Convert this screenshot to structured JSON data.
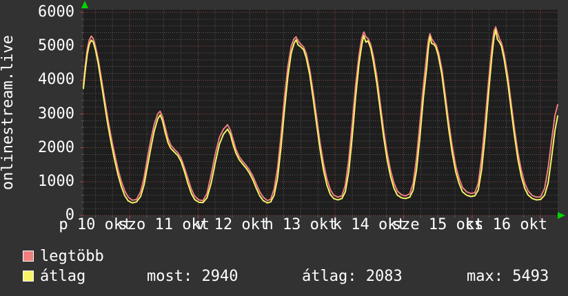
{
  "window": {
    "background": "#323232",
    "plot_background": "#1e1e1e"
  },
  "colors": {
    "text": "#ffffff",
    "major_grid": "#a04747",
    "minor_grid": "#5a5a5a",
    "axis_arrow": "#00d400",
    "max_line": "#f08080",
    "avg_line": "#f5f466"
  },
  "legend": {
    "items": [
      {
        "label": "legtöbb",
        "color": "#f08080"
      },
      {
        "label": "átlag",
        "color": "#f5f466"
      }
    ]
  },
  "stats": [
    {
      "label": "most",
      "value": 2940,
      "display": "most: 2940"
    },
    {
      "label": "átlag",
      "value": 2083,
      "display": "átlag: 2083"
    },
    {
      "label": "max",
      "value": 5493,
      "display": "max: 5493"
    }
  ],
  "chart_data": {
    "type": "line",
    "title": "onlinestream.live",
    "xlabel": "",
    "ylabel": "",
    "ylim": [
      0,
      6000
    ],
    "yticks": [
      0,
      1000,
      2000,
      3000,
      4000,
      5000,
      6000
    ],
    "y_minor_step": 200,
    "grid": true,
    "legend_position": "bottom-left",
    "x_range_days": [
      0.325,
      7.25
    ],
    "x_major_gridlines_days": [
      1,
      2,
      3,
      4,
      5,
      6,
      7
    ],
    "x_minor_step_days": 0.25,
    "x_labels": [
      {
        "center_day": 0.5,
        "text": "p 10 okt"
      },
      {
        "center_day": 1.5,
        "text": "szo 11 okt"
      },
      {
        "center_day": 2.5,
        "text": "v 12 okt"
      },
      {
        "center_day": 3.5,
        "text": "h 13 okt"
      },
      {
        "center_day": 4.5,
        "text": "k 14 okt"
      },
      {
        "center_day": 5.5,
        "text": "sze 15 okt"
      },
      {
        "center_day": 6.5,
        "text": "cs 16 okt"
      }
    ],
    "t_days": [
      0.325,
      0.35,
      0.38,
      0.41,
      0.44,
      0.47,
      0.5,
      0.54,
      0.58,
      0.63,
      0.68,
      0.73,
      0.78,
      0.83,
      0.88,
      0.93,
      0.98,
      1.04,
      1.1,
      1.16,
      1.21,
      1.26,
      1.31,
      1.36,
      1.41,
      1.445,
      1.48,
      1.52,
      1.56,
      1.6,
      1.65,
      1.7,
      1.75,
      1.8,
      1.85,
      1.9,
      1.95,
      2.01,
      2.07,
      2.13,
      2.19,
      2.25,
      2.31,
      2.37,
      2.43,
      2.47,
      2.51,
      2.55,
      2.6,
      2.65,
      2.7,
      2.75,
      2.8,
      2.85,
      2.9,
      2.95,
      3.01,
      3.06,
      3.11,
      3.16,
      3.21,
      3.26,
      3.31,
      3.36,
      3.4,
      3.43,
      3.46,
      3.5,
      3.54,
      3.58,
      3.63,
      3.68,
      3.73,
      3.78,
      3.83,
      3.88,
      3.93,
      3.98,
      4.04,
      4.1,
      4.15,
      4.2,
      4.25,
      4.3,
      4.35,
      4.39,
      4.42,
      4.45,
      4.48,
      4.52,
      4.56,
      4.61,
      4.66,
      4.71,
      4.76,
      4.81,
      4.86,
      4.91,
      4.97,
      5.03,
      5.09,
      5.14,
      5.19,
      5.24,
      5.29,
      5.34,
      5.36,
      5.385,
      5.41,
      5.44,
      5.47,
      5.51,
      5.56,
      5.61,
      5.66,
      5.71,
      5.76,
      5.81,
      5.86,
      5.92,
      5.98,
      6.04,
      6.09,
      6.14,
      6.19,
      6.24,
      6.29,
      6.32,
      6.345,
      6.37,
      6.4,
      6.43,
      6.47,
      6.52,
      6.57,
      6.62,
      6.67,
      6.72,
      6.77,
      6.82,
      6.88,
      6.94,
      7.0,
      7.06,
      7.11,
      7.16,
      7.21,
      7.25
    ],
    "series": [
      {
        "name": "legtöbb",
        "color": "#f08080",
        "values": [
          3850,
          4400,
          4900,
          5180,
          5300,
          5220,
          5000,
          4620,
          4150,
          3500,
          2870,
          2320,
          1820,
          1360,
          1000,
          720,
          540,
          450,
          470,
          700,
          1100,
          1700,
          2250,
          2700,
          3000,
          3080,
          2920,
          2600,
          2280,
          2080,
          1960,
          1860,
          1700,
          1420,
          1100,
          780,
          570,
          460,
          440,
          650,
          1200,
          1800,
          2300,
          2550,
          2680,
          2520,
          2250,
          1960,
          1740,
          1600,
          1480,
          1340,
          1160,
          920,
          700,
          540,
          440,
          480,
          780,
          1400,
          2350,
          3450,
          4400,
          5000,
          5220,
          5280,
          5160,
          5060,
          4980,
          4780,
          4300,
          3650,
          2900,
          2150,
          1550,
          1080,
          760,
          600,
          540,
          580,
          900,
          1650,
          2700,
          3850,
          4750,
          5250,
          5420,
          5280,
          5230,
          5050,
          4700,
          4100,
          3300,
          2500,
          1850,
          1330,
          950,
          720,
          610,
          580,
          640,
          950,
          1700,
          2750,
          3850,
          4780,
          5150,
          5370,
          5220,
          5130,
          5050,
          4820,
          4320,
          3550,
          2750,
          2050,
          1480,
          1100,
          830,
          700,
          650,
          670,
          950,
          1700,
          2750,
          3950,
          5000,
          5450,
          5570,
          5400,
          5220,
          5100,
          4750,
          4150,
          3350,
          2550,
          1850,
          1330,
          950,
          720,
          590,
          540,
          550,
          800,
          1400,
          2200,
          2950,
          3270
        ]
      },
      {
        "name": "átlag",
        "color": "#f5f466",
        "values": [
          3750,
          4250,
          4750,
          5050,
          5180,
          5120,
          4900,
          4500,
          4000,
          3350,
          2700,
          2150,
          1650,
          1200,
          850,
          580,
          430,
          370,
          400,
          560,
          900,
          1450,
          2000,
          2500,
          2850,
          2970,
          2800,
          2450,
          2150,
          1980,
          1880,
          1780,
          1600,
          1300,
          950,
          650,
          470,
          390,
          380,
          520,
          950,
          1550,
          2100,
          2400,
          2550,
          2400,
          2100,
          1850,
          1650,
          1520,
          1400,
          1250,
          1050,
          800,
          580,
          440,
          370,
          400,
          600,
          1100,
          2000,
          3100,
          4100,
          4800,
          5080,
          5190,
          5040,
          4980,
          4900,
          4650,
          4150,
          3450,
          2700,
          1950,
          1350,
          900,
          620,
          500,
          460,
          500,
          700,
          1300,
          2300,
          3500,
          4500,
          5050,
          5310,
          5120,
          5160,
          4950,
          4550,
          3900,
          3100,
          2300,
          1650,
          1150,
          800,
          600,
          520,
          500,
          540,
          750,
          1350,
          2350,
          3500,
          4400,
          4900,
          5290,
          5080,
          5060,
          4980,
          4700,
          4150,
          3350,
          2550,
          1850,
          1300,
          950,
          700,
          600,
          560,
          580,
          750,
          1350,
          2350,
          3600,
          4700,
          5250,
          5490,
          5200,
          5120,
          5000,
          4600,
          3950,
          3150,
          2350,
          1650,
          1150,
          800,
          600,
          500,
          460,
          470,
          600,
          950,
          1700,
          2500,
          2940
        ]
      }
    ]
  }
}
